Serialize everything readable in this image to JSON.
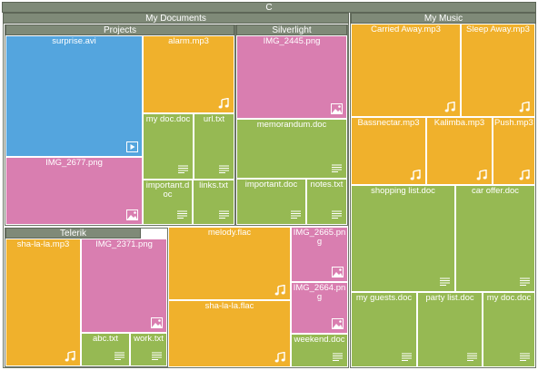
{
  "root": {
    "label": "C"
  },
  "groups": {
    "my_documents": "My Documents",
    "projects": "Projects",
    "silverlight": "Silverlight",
    "telerik": "Telerik",
    "my_music": "My Music"
  },
  "tiles": [
    {
      "label": "surprise.avi",
      "icon": "video-icon",
      "color": "#54a5de"
    },
    {
      "label": "alarm.mp3",
      "icon": "music-note-icon",
      "color": "#f0b12c"
    },
    {
      "label": "my doc.doc",
      "icon": "document-icon",
      "color": "#96b953"
    },
    {
      "label": "url.txt",
      "icon": "document-icon",
      "color": "#96b953"
    },
    {
      "label": "IMG_2677.png",
      "icon": "image-icon",
      "color": "#d97eb0"
    },
    {
      "label": "important.doc",
      "icon": "document-icon",
      "color": "#96b953"
    },
    {
      "label": "links.txt",
      "icon": "document-icon",
      "color": "#96b953"
    },
    {
      "label": "IMG_2445.png",
      "icon": "image-icon",
      "color": "#d97eb0"
    },
    {
      "label": "memorandum.doc",
      "icon": "document-icon",
      "color": "#96b953"
    },
    {
      "label": "important.doc",
      "icon": "document-icon",
      "color": "#96b953"
    },
    {
      "label": "notes.txt",
      "icon": "document-icon",
      "color": "#96b953"
    },
    {
      "label": "sha-la-la.mp3",
      "icon": "music-note-icon",
      "color": "#f0b12c"
    },
    {
      "label": "IMG_2371.png",
      "icon": "image-icon",
      "color": "#d97eb0"
    },
    {
      "label": "abc.txt",
      "icon": "document-icon",
      "color": "#96b953"
    },
    {
      "label": "work.txt",
      "icon": "document-icon",
      "color": "#96b953"
    },
    {
      "label": "melody.flac",
      "icon": "music-note-icon",
      "color": "#f0b12c"
    },
    {
      "label": "sha-la-la.flac",
      "icon": "music-note-icon",
      "color": "#f0b12c"
    },
    {
      "label": "IMG_2665.png",
      "icon": "image-icon",
      "color": "#d97eb0"
    },
    {
      "label": "IMG_2664.png",
      "icon": "image-icon",
      "color": "#d97eb0"
    },
    {
      "label": "weekend.doc",
      "icon": "document-icon",
      "color": "#96b953"
    },
    {
      "label": "Carried Away.mp3",
      "icon": "music-note-icon",
      "color": "#f0b12c"
    },
    {
      "label": "Sleep Away.mp3",
      "icon": "music-note-icon",
      "color": "#f0b12c"
    },
    {
      "label": "Bassnectar.mp3",
      "icon": "music-note-icon",
      "color": "#f0b12c"
    },
    {
      "label": "Kalimba.mp3",
      "icon": "music-note-icon",
      "color": "#f0b12c"
    },
    {
      "label": "Push.mp3",
      "icon": "music-note-icon",
      "color": "#f0b12c"
    },
    {
      "label": "shopping list.doc",
      "icon": "document-icon",
      "color": "#96b953"
    },
    {
      "label": "car offer.doc",
      "icon": "document-icon",
      "color": "#96b953"
    },
    {
      "label": "my guests.doc",
      "icon": "document-icon",
      "color": "#96b953"
    },
    {
      "label": "party list.doc",
      "icon": "document-icon",
      "color": "#96b953"
    },
    {
      "label": "my doc.doc",
      "icon": "document-icon",
      "color": "#96b953"
    }
  ]
}
